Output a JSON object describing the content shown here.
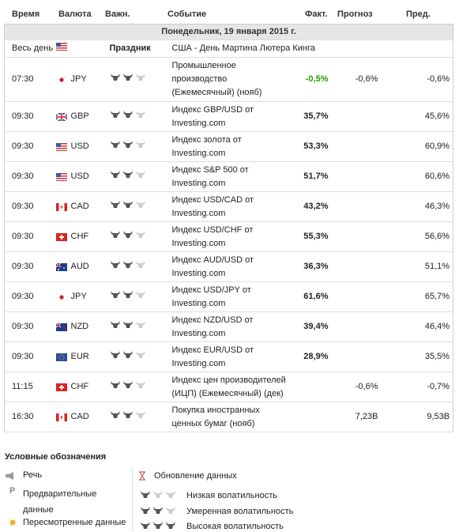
{
  "header": {
    "time": "Время",
    "currency": "Валюта",
    "importance": "Важн.",
    "event": "Событие",
    "actual": "Факт.",
    "forecast": "Прогноз",
    "previous": "Пред."
  },
  "date": "Понедельник, 19 января 2015 г.",
  "holiday": {
    "time": "Весь день",
    "label": "Праздник",
    "event": "США - День Мартина Лютера Кинга"
  },
  "rows": [
    {
      "time": "07:30",
      "currency": "JPY",
      "importance": 2,
      "event": "Промышленное производство (Ежемесячный) (нояб)",
      "actual": "-0,5%",
      "actual_color": "#2a9d00",
      "forecast": "-0,6%",
      "previous": "-0,6%"
    },
    {
      "time": "09:30",
      "currency": "GBP",
      "importance": 2,
      "event": "Индекс GBP/USD от Investing.com",
      "actual": "35,7%",
      "previous": "45,6%"
    },
    {
      "time": "09:30",
      "currency": "USD",
      "importance": 2,
      "event": "Индекс золота от Investing.com",
      "actual": "53,3%",
      "previous": "60,9%"
    },
    {
      "time": "09:30",
      "currency": "USD",
      "importance": 2,
      "event": "Индекс S&P 500 от Investing.com",
      "actual": "51,7%",
      "previous": "60,6%"
    },
    {
      "time": "09:30",
      "currency": "CAD",
      "importance": 2,
      "event": "Индекс USD/CAD от Investing.com",
      "actual": "43,2%",
      "previous": "46,3%"
    },
    {
      "time": "09:30",
      "currency": "CHF",
      "importance": 2,
      "event": "Индекс USD/CHF от Investing.com",
      "actual": "55,3%",
      "previous": "56,6%"
    },
    {
      "time": "09:30",
      "currency": "AUD",
      "importance": 2,
      "event": "Индекс AUD/USD от Investing.com",
      "actual": "36,3%",
      "previous": "51,1%"
    },
    {
      "time": "09:30",
      "currency": "JPY",
      "importance": 2,
      "event": "Индекс USD/JPY от Investing.com",
      "actual": "61,6%",
      "previous": "65,7%"
    },
    {
      "time": "09:30",
      "currency": "NZD",
      "importance": 2,
      "event": "Индекс NZD/USD от Investing.com",
      "actual": "39,4%",
      "previous": "46,4%"
    },
    {
      "time": "09:30",
      "currency": "EUR",
      "importance": 2,
      "event": "Индекс EUR/USD от Investing.com",
      "actual": "28,9%",
      "previous": "35,5%"
    },
    {
      "time": "11:15",
      "currency": "CHF",
      "importance": 2,
      "event": "Индекс цен производителей (ИЦП) (Ежемесячный) (дек)",
      "forecast": "-0,6%",
      "previous": "-0,7%"
    },
    {
      "time": "16:30",
      "currency": "CAD",
      "importance": 2,
      "event": "Покупка иностранных ценных бумаг (нояб)",
      "forecast": "7,23B",
      "previous": "9,53B"
    }
  ],
  "legend": {
    "title": "Условные обозначения",
    "speech": "Речь",
    "preliminary": "Предварительные данные",
    "revised": "Пересмотренные данные",
    "update": "Обновление данных",
    "low": "Низкая волатильность",
    "moderate": "Умеренная волатильность",
    "high": "Высокая волатильность"
  }
}
